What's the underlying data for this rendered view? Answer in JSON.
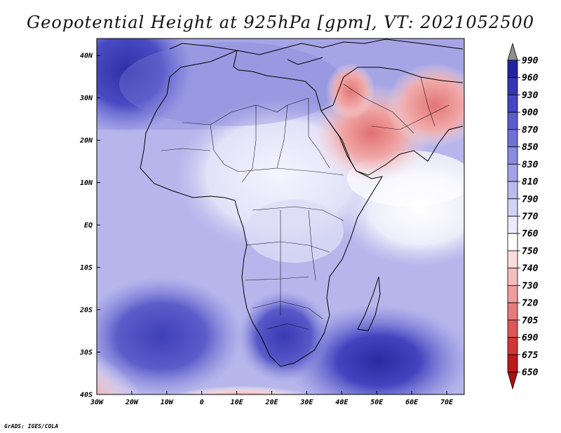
{
  "title": "Geopotential Height at 925hPa [gpm], VT: 2021052500",
  "credit": "GrADS: IGES/COLA",
  "map": {
    "lon_labels": [
      "30W",
      "20W",
      "10W",
      "0",
      "10E",
      "20E",
      "30E",
      "40E",
      "50E",
      "60E",
      "70E"
    ],
    "lat_labels": [
      "40N",
      "30N",
      "20N",
      "10N",
      "EQ",
      "10S",
      "20S",
      "30S",
      "40S"
    ],
    "lon_range": [
      -30,
      75
    ],
    "lat_range": [
      -40,
      44
    ]
  },
  "colorbar": {
    "labels": [
      "990",
      "960",
      "930",
      "900",
      "870",
      "850",
      "830",
      "810",
      "790",
      "770",
      "760",
      "750",
      "740",
      "730",
      "720",
      "705",
      "690",
      "675",
      "650"
    ],
    "colors": [
      "#8f8f8f",
      "#23239e",
      "#3434b5",
      "#4646c2",
      "#5b5bcc",
      "#7070d6",
      "#8a8ade",
      "#a2a2e6",
      "#babaee",
      "#d2d2f5",
      "#ebebfb",
      "#ffffff",
      "#fbdcdc",
      "#f5bdbd",
      "#ee9c9c",
      "#e57b7b",
      "#dc5858",
      "#d03636",
      "#bb1a1a",
      "#aa0f0f"
    ]
  }
}
